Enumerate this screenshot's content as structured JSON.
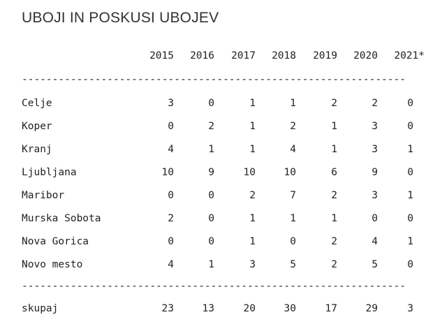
{
  "title": "UBOJI IN POSKUSI UBOJEV",
  "years": [
    "2015",
    "2016",
    "2017",
    "2018",
    "2019",
    "2020",
    "2021*"
  ],
  "separator": "---------------------------------------------------------------------------",
  "rows": [
    {
      "name": "Celje",
      "values": [
        "3",
        "0",
        "1",
        "1",
        "2",
        "2",
        "0"
      ]
    },
    {
      "name": "Koper",
      "values": [
        "0",
        "2",
        "1",
        "2",
        "1",
        "3",
        "0"
      ]
    },
    {
      "name": "Kranj",
      "values": [
        "4",
        "1",
        "1",
        "4",
        "1",
        "3",
        "1"
      ]
    },
    {
      "name": "Ljubljana",
      "values": [
        "10",
        "9",
        "10",
        "10",
        "6",
        "9",
        "0"
      ]
    },
    {
      "name": "Maribor",
      "values": [
        "0",
        "0",
        "2",
        "7",
        "2",
        "3",
        "1"
      ]
    },
    {
      "name": "Murska Sobota",
      "values": [
        "2",
        "0",
        "1",
        "1",
        "1",
        "0",
        "0"
      ]
    },
    {
      "name": "Nova Gorica",
      "values": [
        "0",
        "0",
        "1",
        "0",
        "2",
        "4",
        "1"
      ]
    },
    {
      "name": "Novo mesto",
      "values": [
        "4",
        "1",
        "3",
        "5",
        "2",
        "5",
        "0"
      ]
    }
  ],
  "total": {
    "name": "skupaj",
    "values": [
      "23",
      "13",
      "20",
      "30",
      "17",
      "29",
      "3"
    ]
  }
}
